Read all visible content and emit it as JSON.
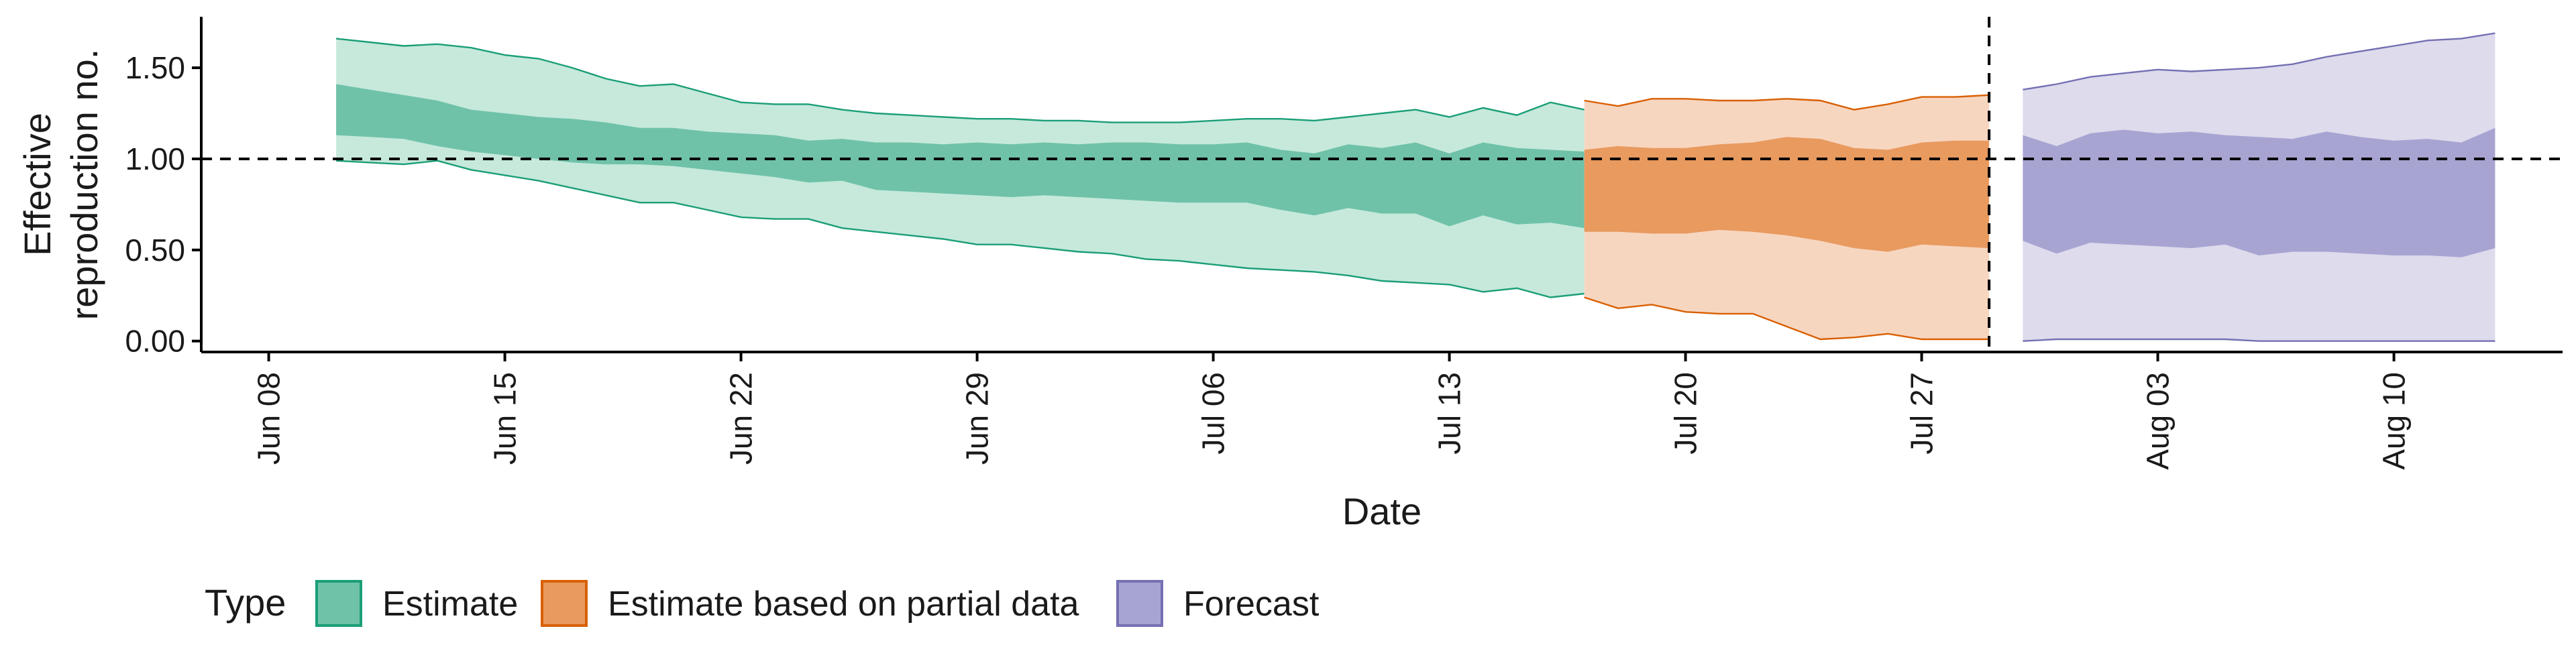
{
  "chart_data": {
    "type": "area",
    "xlabel": "Date",
    "ylabel_lines": [
      "Effective",
      "reproduction no."
    ],
    "ylim": [
      -0.06,
      1.78
    ],
    "yticks": [
      {
        "value": 0.0,
        "label": "0.00"
      },
      {
        "value": 0.5,
        "label": "0.50"
      },
      {
        "value": 1.0,
        "label": "1.00"
      },
      {
        "value": 1.5,
        "label": "1.50"
      }
    ],
    "xlim": [
      "2020-06-06",
      "2020-08-15"
    ],
    "xticks": [
      {
        "date": "2020-06-08",
        "label": "Jun 08"
      },
      {
        "date": "2020-06-15",
        "label": "Jun 15"
      },
      {
        "date": "2020-06-22",
        "label": "Jun 22"
      },
      {
        "date": "2020-06-29",
        "label": "Jun 29"
      },
      {
        "date": "2020-07-06",
        "label": "Jul 06"
      },
      {
        "date": "2020-07-13",
        "label": "Jul 13"
      },
      {
        "date": "2020-07-20",
        "label": "Jul 20"
      },
      {
        "date": "2020-07-27",
        "label": "Jul 27"
      },
      {
        "date": "2020-08-03",
        "label": "Aug 03"
      },
      {
        "date": "2020-08-10",
        "label": "Aug 10"
      }
    ],
    "reference_line": 1.0,
    "vertical_line_date": "2020-07-29",
    "legend": {
      "title": "Type",
      "position": "bottom-left",
      "items": [
        "Estimate",
        "Estimate based on partial data",
        "Forecast"
      ]
    },
    "colors": {
      "Estimate": {
        "outer": "#c6e9dc",
        "inner": "#6fc2a8",
        "line": "#1b9e77"
      },
      "Estimate based on partial data": {
        "outer": "#f7d6c0",
        "inner": "#e89a5f",
        "line": "#d95f02"
      },
      "Forecast": {
        "outer": "#dddbec",
        "inner": "#a8a4d2",
        "line": "#7570b3"
      }
    },
    "series": [
      {
        "name": "Estimate",
        "start": "2020-06-10",
        "outer_upper": [
          1.66,
          1.64,
          1.62,
          1.63,
          1.61,
          1.57,
          1.55,
          1.5,
          1.44,
          1.4,
          1.41,
          1.36,
          1.31,
          1.3,
          1.3,
          1.27,
          1.25,
          1.24,
          1.23,
          1.22,
          1.22,
          1.21,
          1.21,
          1.2,
          1.2,
          1.2,
          1.21,
          1.22,
          1.22,
          1.21,
          1.23,
          1.25,
          1.27,
          1.23,
          1.28,
          1.24,
          1.31,
          1.27
        ],
        "inner_upper": [
          1.41,
          1.38,
          1.35,
          1.32,
          1.27,
          1.25,
          1.23,
          1.22,
          1.2,
          1.17,
          1.17,
          1.15,
          1.14,
          1.13,
          1.1,
          1.11,
          1.09,
          1.09,
          1.08,
          1.09,
          1.08,
          1.09,
          1.08,
          1.09,
          1.09,
          1.08,
          1.08,
          1.09,
          1.05,
          1.03,
          1.08,
          1.06,
          1.09,
          1.03,
          1.09,
          1.06,
          1.05,
          1.04
        ],
        "inner_lower": [
          1.13,
          1.12,
          1.11,
          1.07,
          1.04,
          1.02,
          1.0,
          0.98,
          0.97,
          0.97,
          0.96,
          0.94,
          0.92,
          0.9,
          0.87,
          0.88,
          0.83,
          0.82,
          0.81,
          0.8,
          0.79,
          0.8,
          0.79,
          0.78,
          0.77,
          0.76,
          0.76,
          0.76,
          0.72,
          0.69,
          0.73,
          0.7,
          0.7,
          0.63,
          0.69,
          0.64,
          0.65,
          0.62
        ],
        "outer_lower": [
          0.99,
          0.98,
          0.97,
          0.99,
          0.94,
          0.91,
          0.88,
          0.84,
          0.8,
          0.76,
          0.76,
          0.72,
          0.68,
          0.67,
          0.67,
          0.62,
          0.6,
          0.58,
          0.56,
          0.53,
          0.53,
          0.51,
          0.49,
          0.48,
          0.45,
          0.44,
          0.42,
          0.4,
          0.39,
          0.38,
          0.36,
          0.33,
          0.32,
          0.31,
          0.27,
          0.29,
          0.24,
          0.26
        ]
      },
      {
        "name": "Estimate based on partial data",
        "start": "2020-07-17",
        "outer_upper": [
          1.32,
          1.29,
          1.33,
          1.33,
          1.32,
          1.32,
          1.33,
          1.32,
          1.27,
          1.3,
          1.34,
          1.34,
          1.35
        ],
        "inner_upper": [
          1.05,
          1.07,
          1.06,
          1.06,
          1.08,
          1.09,
          1.12,
          1.11,
          1.06,
          1.05,
          1.09,
          1.1,
          1.1
        ],
        "inner_lower": [
          0.6,
          0.6,
          0.59,
          0.59,
          0.61,
          0.6,
          0.58,
          0.55,
          0.51,
          0.49,
          0.53,
          0.52,
          0.51
        ],
        "outer_lower": [
          0.24,
          0.18,
          0.2,
          0.16,
          0.15,
          0.15,
          0.08,
          0.01,
          0.02,
          0.04,
          0.01,
          0.01,
          0.01
        ]
      },
      {
        "name": "Forecast",
        "start": "2020-07-30",
        "outer_upper": [
          1.38,
          1.41,
          1.45,
          1.47,
          1.49,
          1.48,
          1.49,
          1.5,
          1.52,
          1.56,
          1.59,
          1.62,
          1.65,
          1.66,
          1.69
        ],
        "inner_upper": [
          1.13,
          1.07,
          1.14,
          1.16,
          1.14,
          1.15,
          1.13,
          1.12,
          1.11,
          1.15,
          1.12,
          1.1,
          1.11,
          1.09,
          1.17
        ],
        "inner_lower": [
          0.55,
          0.48,
          0.54,
          0.53,
          0.52,
          0.51,
          0.53,
          0.47,
          0.49,
          0.49,
          0.48,
          0.47,
          0.47,
          0.46,
          0.51
        ],
        "outer_lower": [
          0.0,
          0.01,
          0.01,
          0.01,
          0.01,
          0.01,
          0.01,
          0.0,
          0.0,
          0.0,
          0.0,
          0.0,
          0.0,
          0.0,
          0.0
        ]
      }
    ]
  }
}
